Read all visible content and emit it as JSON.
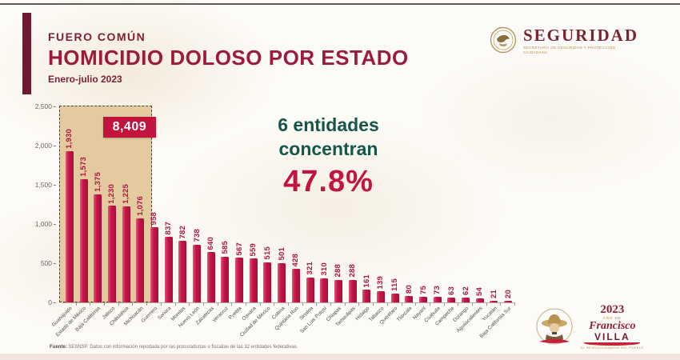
{
  "header": {
    "kicker": "FUERO COMÚN",
    "title": "HOMICIDIO DOLOSO POR ESTADO",
    "subtitle": "Enero-julio 2023"
  },
  "seguridad_logo": {
    "title": "SEGURIDAD",
    "subtitle": "Secretaría de Seguridad y Protección Ciudadana"
  },
  "annotation": {
    "line1": "6 entidades",
    "line2": "concentran",
    "percent": "47.8%"
  },
  "highlight": {
    "total_label": "8,409",
    "bars_count": 6
  },
  "chart_data": {
    "type": "bar",
    "title": "Homicidio doloso por estado. Enero-julio 2023",
    "xlabel": "",
    "ylabel": "",
    "grid": false,
    "legend": false,
    "ylim": [
      0,
      2500
    ],
    "y_tick_values": [
      0,
      500,
      1000,
      1500,
      2000,
      2500
    ],
    "highlight_first_n": 6,
    "highlight_total": 8409,
    "categories": [
      "Guanajuato",
      "Estado de México",
      "Baja California",
      "Jalisco",
      "Chihuahua",
      "Michoacán",
      "Guerrero",
      "Sonora",
      "Morelos",
      "Nuevo León",
      "Zacatecas",
      "Veracruz",
      "Puebla",
      "Oaxaca",
      "Ciudad de México",
      "Colima",
      "Quintana Roo",
      "Sinaloa",
      "San Luis Potosí",
      "Chiapas",
      "Tamaulipas",
      "Hidalgo",
      "Tabasco",
      "Querétaro",
      "Tlaxcala",
      "Nayarit",
      "Coahuila",
      "Campeche",
      "Durango",
      "Aguascalientes",
      "Yucatán",
      "Baja California Sur"
    ],
    "values": [
      1930,
      1573,
      1375,
      1230,
      1225,
      1076,
      958,
      837,
      782,
      738,
      640,
      585,
      567,
      559,
      515,
      501,
      428,
      321,
      310,
      288,
      288,
      161,
      139,
      115,
      80,
      75,
      73,
      63,
      62,
      54,
      21,
      20
    ]
  },
  "footer": {
    "source_label": "Fuente:",
    "source_text": "SESNSP. Datos con información reportada por las procuradurías o fiscalías de las 32 entidades federativas."
  },
  "villa_logo": {
    "year": "2023",
    "prefix": "año de",
    "first_name": "Francisco",
    "last_name": "VILLA",
    "caption": "El revolucionario del pueblo"
  }
}
